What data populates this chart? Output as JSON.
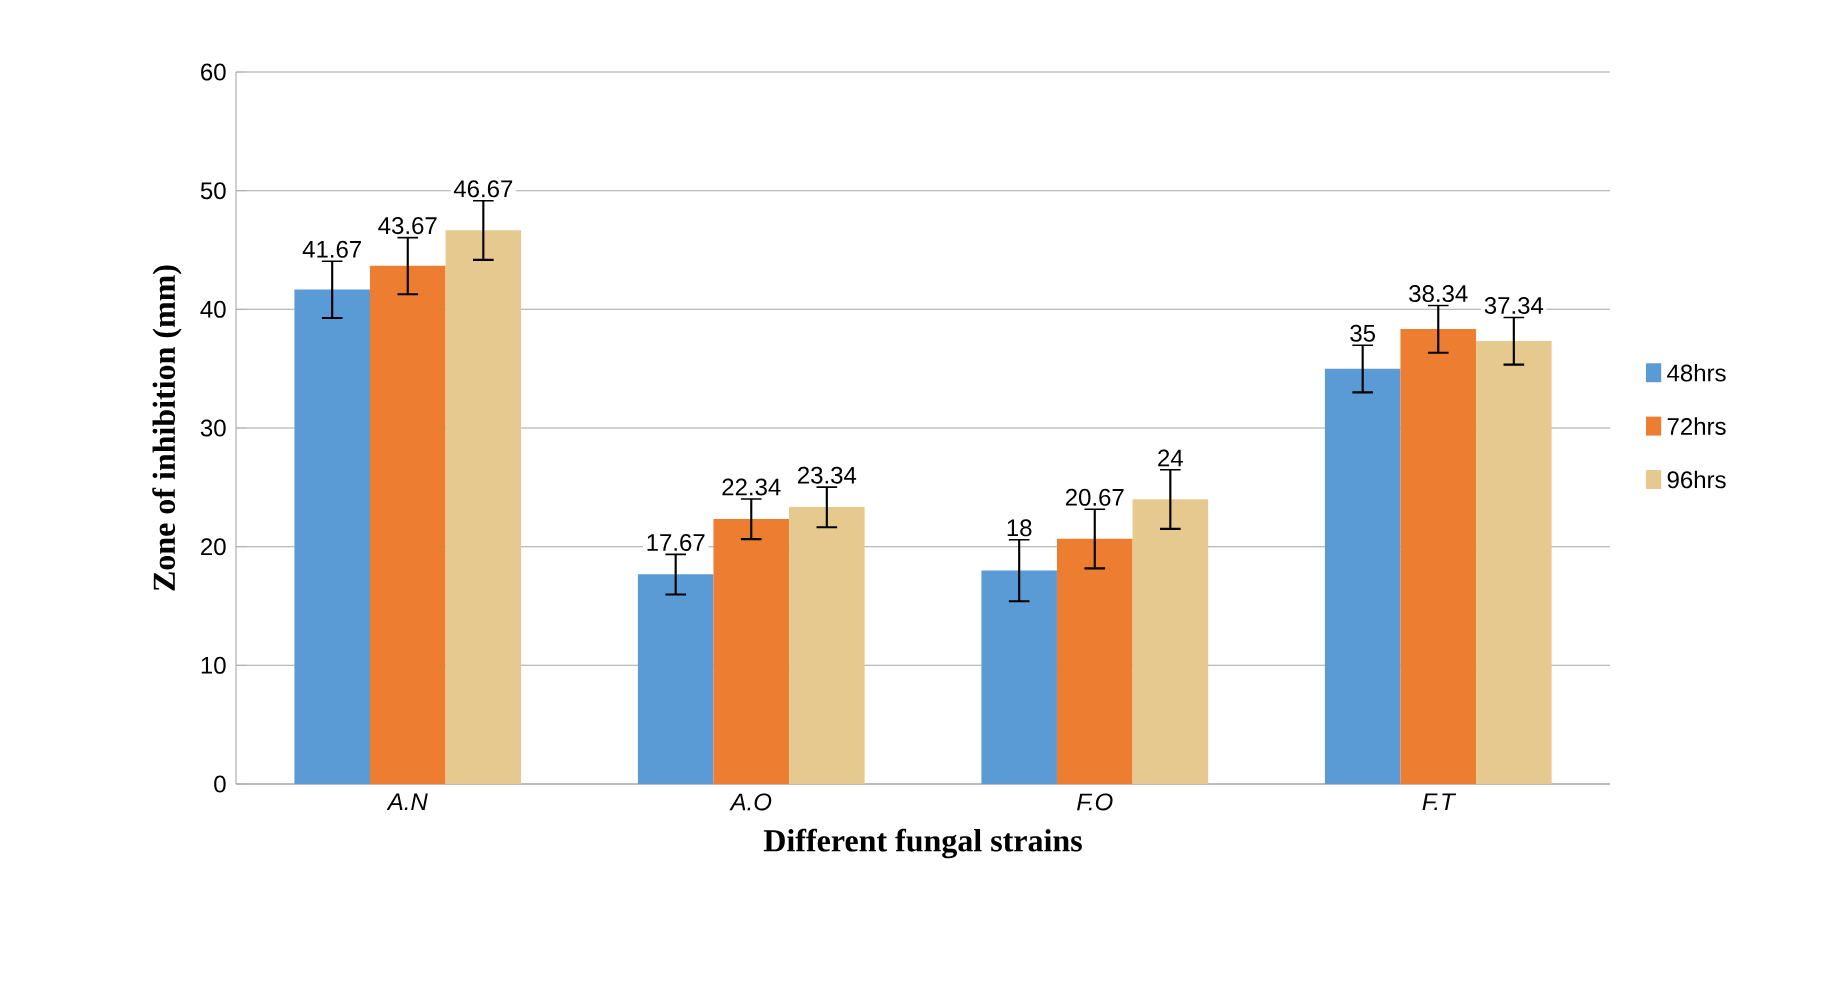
{
  "chart_data": {
    "type": "bar",
    "xlabel": "Different fungal strains",
    "ylabel": "Zone of inhibition  (mm)",
    "categories": [
      "A.N",
      "A.O",
      "F.O",
      "F.T"
    ],
    "series": [
      {
        "name": "48hrs",
        "color": "#5b9bd5",
        "values": [
          41.67,
          17.67,
          18,
          35
        ],
        "errors": [
          2.4,
          1.7,
          2.6,
          2.0
        ]
      },
      {
        "name": "72hrs",
        "color": "#ed7d31",
        "values": [
          43.67,
          22.34,
          20.67,
          38.34
        ],
        "errors": [
          2.4,
          1.7,
          2.5,
          2.0
        ]
      },
      {
        "name": "96hrs",
        "color": "#e6c98f",
        "values": [
          46.67,
          23.34,
          24,
          37.34
        ],
        "errors": [
          2.5,
          1.7,
          2.5,
          2.0
        ]
      }
    ],
    "ylim": [
      0,
      60
    ],
    "yticks": [
      0,
      10,
      20,
      30,
      40,
      50,
      60
    ],
    "grid": "y",
    "legend": "right",
    "data_labels": true
  }
}
